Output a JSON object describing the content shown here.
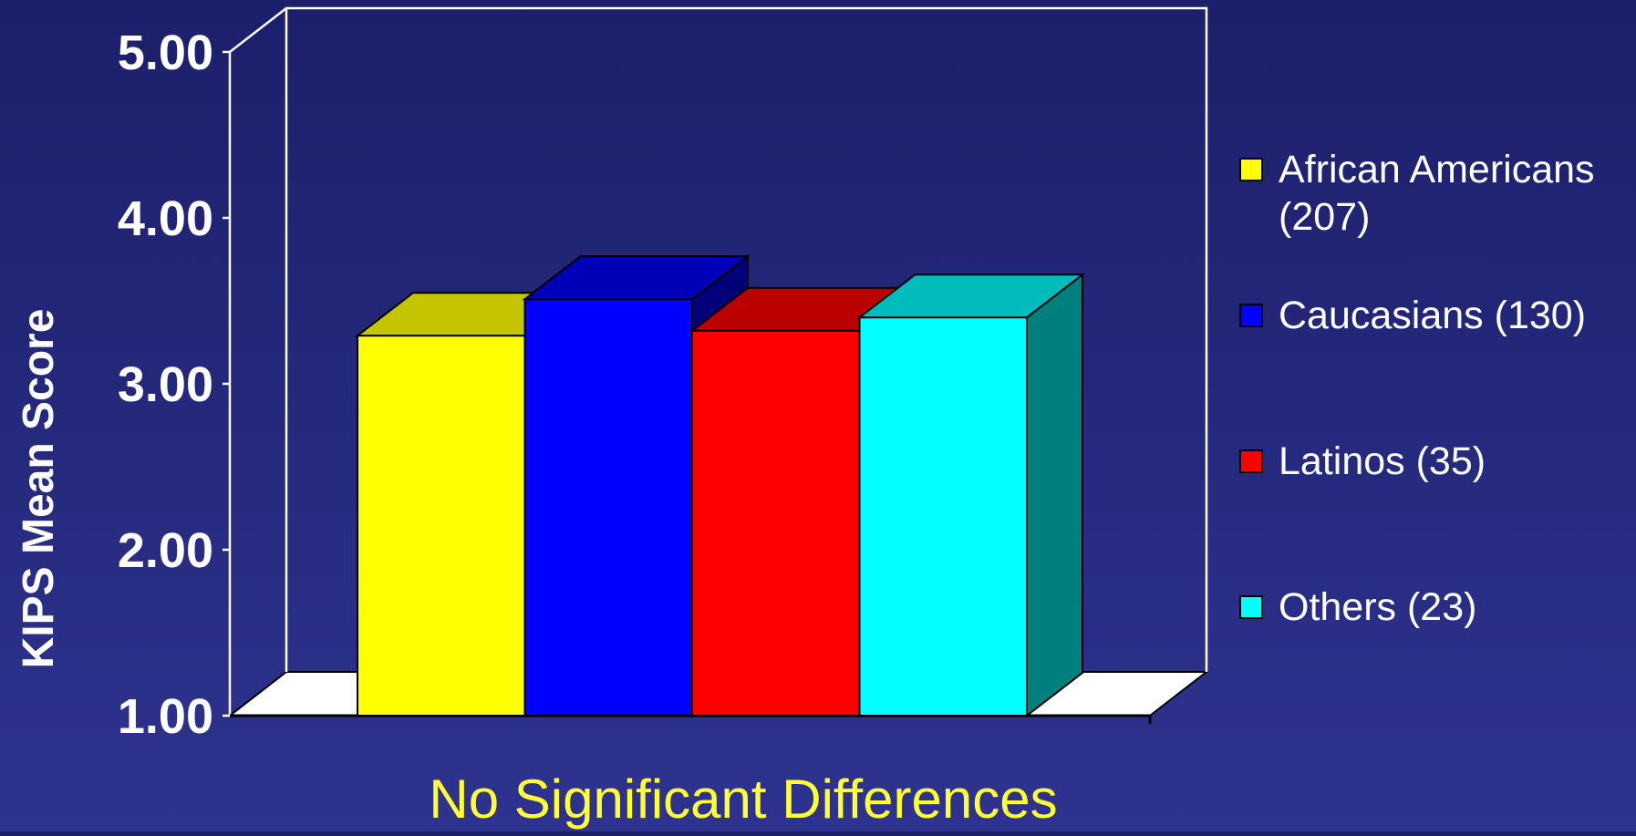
{
  "chart_data": {
    "type": "bar",
    "title": "",
    "xlabel": "No Significant Differences",
    "ylabel": "KIPS Mean Score",
    "ylim": [
      1.0,
      5.0
    ],
    "yticks": [
      "1.00",
      "2.00",
      "3.00",
      "4.00",
      "5.00"
    ],
    "grid": false,
    "legend_position": "right",
    "series": [
      {
        "name": "African Americans (207)",
        "value": 3.29,
        "color": "#ffff00",
        "top_color": "#c4c400",
        "side_color": "#8a8a00"
      },
      {
        "name": "Caucasians (130)",
        "value": 3.51,
        "color": "#0000ff",
        "top_color": "#0000b8",
        "side_color": "#00007a"
      },
      {
        "name": "Latinos (35)",
        "value": 3.32,
        "color": "#ff0000",
        "top_color": "#bb0000",
        "side_color": "#800000"
      },
      {
        "name": "Others (23)",
        "value": 3.4,
        "color": "#00ffff",
        "top_color": "#00bcbc",
        "side_color": "#007f7f"
      }
    ]
  }
}
